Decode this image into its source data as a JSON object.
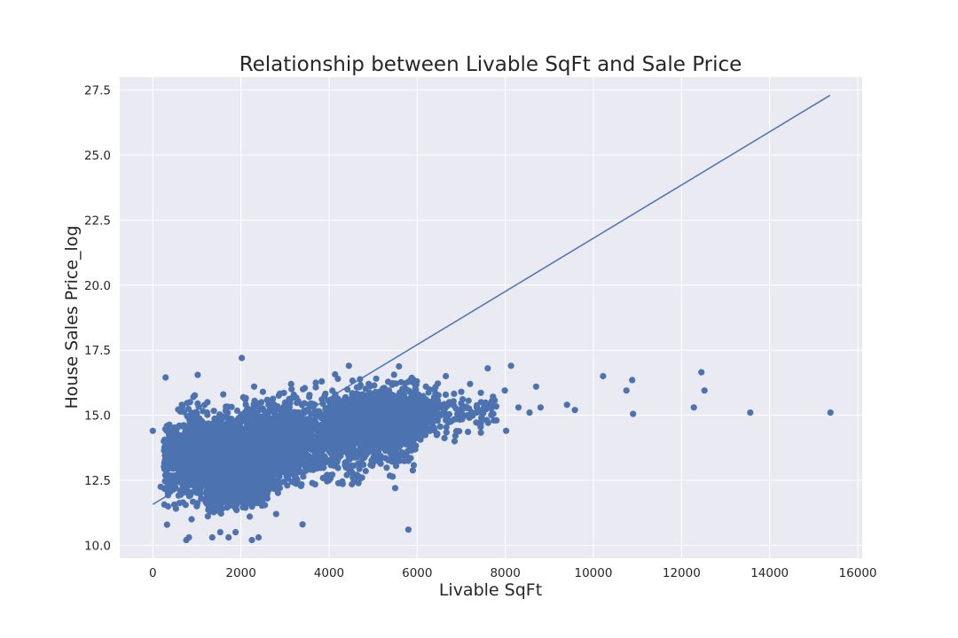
{
  "chart_data": {
    "type": "scatter",
    "title": "Relationship between Livable SqFt and Sale Price",
    "xlabel": "Livable SqFt",
    "ylabel": "House Sales Price_log",
    "xlim": [
      -750,
      16100
    ],
    "ylim": [
      9.5,
      28.0
    ],
    "x_ticks": [
      0,
      2000,
      4000,
      6000,
      8000,
      10000,
      12000,
      14000,
      16000
    ],
    "x_tick_labels": [
      "0",
      "2000",
      "4000",
      "6000",
      "8000",
      "10000",
      "12000",
      "14000",
      "16000"
    ],
    "y_ticks": [
      10.0,
      12.5,
      15.0,
      17.5,
      20.0,
      22.5,
      25.0,
      27.5
    ],
    "y_tick_labels": [
      "10.0",
      "12.5",
      "15.0",
      "17.5",
      "20.0",
      "22.5",
      "25.0",
      "27.5"
    ],
    "grid": true,
    "colors": {
      "marker": "#4c72b0",
      "line": "#4c72b0",
      "background": "#eaeaf2",
      "grid": "#ffffff"
    },
    "series": [
      {
        "type": "scatter",
        "points": [
          [
            0,
            14.4
          ],
          [
            180,
            12.25
          ],
          [
            290,
            16.45
          ],
          [
            390,
            13.0
          ],
          [
            420,
            14.25
          ],
          [
            520,
            12.2
          ],
          [
            600,
            14.6
          ],
          [
            660,
            15.4
          ],
          [
            700,
            13.5
          ],
          [
            760,
            10.2
          ],
          [
            820,
            10.3
          ],
          [
            880,
            11.0
          ],
          [
            920,
            15.7
          ],
          [
            960,
            14.0
          ],
          [
            1000,
            11.5
          ],
          [
            1020,
            16.55
          ],
          [
            1100,
            12.8
          ],
          [
            1180,
            13.7
          ],
          [
            1240,
            15.5
          ],
          [
            1300,
            12.6
          ],
          [
            1350,
            10.3
          ],
          [
            1420,
            11.9
          ],
          [
            1480,
            14.8
          ],
          [
            1530,
            10.5
          ],
          [
            1600,
            15.8
          ],
          [
            1650,
            12.0
          ],
          [
            1700,
            13.4
          ],
          [
            1720,
            10.3
          ],
          [
            1800,
            14.6
          ],
          [
            1880,
            10.5
          ],
          [
            1950,
            12.4
          ],
          [
            2020,
            17.2
          ],
          [
            2100,
            15.6
          ],
          [
            2200,
            11.1
          ],
          [
            2250,
            10.2
          ],
          [
            2300,
            16.1
          ],
          [
            2400,
            10.3
          ],
          [
            2500,
            15.9
          ],
          [
            2600,
            11.8
          ],
          [
            2700,
            13.2
          ],
          [
            2800,
            11.2
          ],
          [
            2950,
            15.2
          ],
          [
            3050,
            12.3
          ],
          [
            3150,
            16.0
          ],
          [
            3250,
            14.2
          ],
          [
            3400,
            10.8
          ],
          [
            3550,
            15.7
          ],
          [
            3700,
            16.25
          ],
          [
            3800,
            13.3
          ],
          [
            3900,
            14.9
          ],
          [
            4000,
            12.5
          ],
          [
            4100,
            15.2
          ],
          [
            4200,
            16.4
          ],
          [
            4300,
            12.45
          ],
          [
            4450,
            16.9
          ],
          [
            4600,
            15.8
          ],
          [
            4750,
            12.6
          ],
          [
            4900,
            16.2
          ],
          [
            5100,
            14.3
          ],
          [
            5300,
            15.9
          ],
          [
            5500,
            12.2
          ],
          [
            5700,
            16.0
          ],
          [
            5800,
            10.6
          ],
          [
            6000,
            15.7
          ],
          [
            6200,
            16.1
          ],
          [
            6400,
            15.4
          ],
          [
            6650,
            16.5
          ],
          [
            6850,
            14.0
          ],
          [
            7000,
            15.9
          ],
          [
            7200,
            16.2
          ],
          [
            7450,
            15.5
          ],
          [
            7600,
            16.8
          ],
          [
            7800,
            14.8
          ],
          [
            7990,
            15.95
          ],
          [
            8020,
            14.4
          ],
          [
            8130,
            16.9
          ],
          [
            8300,
            15.3
          ],
          [
            8550,
            15.1
          ],
          [
            8700,
            16.1
          ],
          [
            8800,
            15.3
          ],
          [
            9400,
            15.4
          ],
          [
            9580,
            15.2
          ],
          [
            10220,
            16.5
          ],
          [
            10750,
            15.95
          ],
          [
            10880,
            16.35
          ],
          [
            10900,
            15.05
          ],
          [
            12280,
            15.3
          ],
          [
            12450,
            16.65
          ],
          [
            12520,
            15.95
          ],
          [
            13560,
            15.1
          ],
          [
            15380,
            15.1
          ]
        ],
        "dense_clusters": [
          {
            "x_range": [
              250,
              6000
            ],
            "y_center_at_min": 13.2,
            "y_center_at_max": 14.8,
            "y_spread": 1.6,
            "count": 2600
          },
          {
            "x_range": [
              700,
              3300
            ],
            "y_center_at_min": 13.3,
            "y_center_at_max": 14.0,
            "y_spread": 1.3,
            "count": 1800
          },
          {
            "x_range": [
              1200,
              2600
            ],
            "y_center_at_min": 11.8,
            "y_center_at_max": 12.3,
            "y_spread": 0.6,
            "count": 400
          },
          {
            "x_range": [
              4000,
              6500
            ],
            "y_center_at_min": 14.5,
            "y_center_at_max": 15.2,
            "y_spread": 0.8,
            "count": 700
          },
          {
            "x_range": [
              6000,
              7800
            ],
            "y_center_at_min": 14.9,
            "y_center_at_max": 15.3,
            "y_spread": 0.7,
            "count": 140
          }
        ]
      },
      {
        "type": "line",
        "x": [
          0,
          15370
        ],
        "y": [
          11.57,
          27.3
        ]
      }
    ]
  }
}
